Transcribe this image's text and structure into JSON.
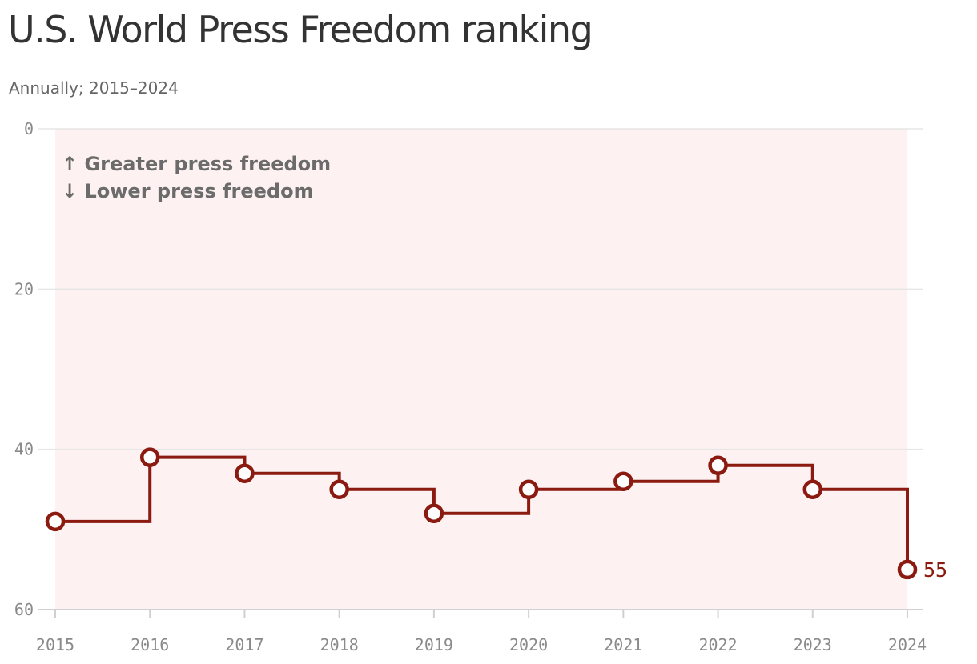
{
  "chart_data": {
    "type": "line",
    "style": "step",
    "title": "U.S. World Press Freedom ranking",
    "subtitle": "Annually; 2015–2024",
    "xlabel": "",
    "ylabel": "",
    "x": [
      "2015",
      "2016",
      "2017",
      "2018",
      "2019",
      "2020",
      "2021",
      "2022",
      "2023",
      "2024"
    ],
    "series": [
      {
        "values": [
          49,
          41,
          43,
          45,
          48,
          45,
          44,
          42,
          45,
          55
        ]
      }
    ],
    "ylim": [
      0,
      60
    ],
    "y_inverted": true,
    "y_ticks": [
      "0",
      "20",
      "40",
      "60"
    ],
    "grid": true,
    "legend": "none",
    "annotations": [
      "↑ Greater press freedom",
      "↓ Lower press freedom"
    ],
    "end_label": "55",
    "colors": {
      "line": "#8b1a10",
      "band": "#fdf1f1",
      "grid": "#e6e6e6",
      "marker_fill": "#ffffff"
    }
  }
}
